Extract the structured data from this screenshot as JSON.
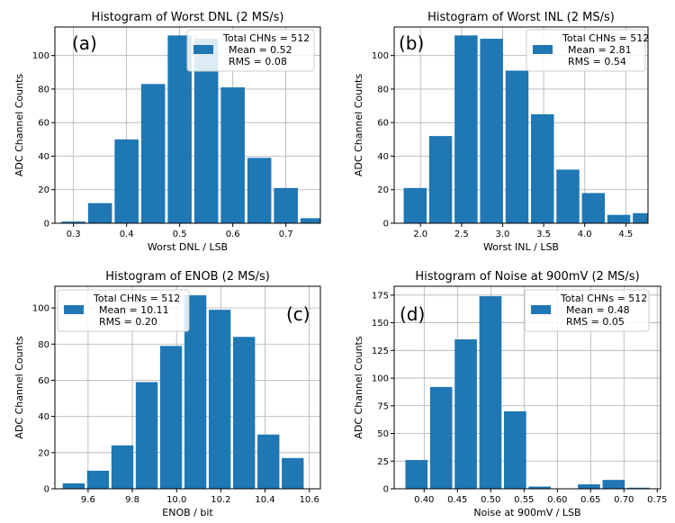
{
  "chart_data": [
    {
      "type": "bar",
      "title": "Histogram of Worst DNL (2 MS/s)",
      "xlabel": "Worst DNL / LSB",
      "ylabel": "ADC Channel Counts",
      "panel_label": "(a)",
      "xlim": [
        0.265,
        0.765
      ],
      "ylim": [
        0,
        117
      ],
      "xticks": [
        "0.3",
        "0.4",
        "0.5",
        "0.6",
        "0.7"
      ],
      "yticks": [
        "0",
        "20",
        "40",
        "60",
        "80",
        "100"
      ],
      "bin_edges": [
        0.275,
        0.325,
        0.375,
        0.425,
        0.475,
        0.525,
        0.575,
        0.625,
        0.675,
        0.725,
        0.775
      ],
      "values": [
        1,
        12,
        50,
        83,
        112,
        110,
        81,
        39,
        21,
        3
      ],
      "grid": true,
      "color": "#1f77b4",
      "legend": {
        "placement": "upper right",
        "lines": [
          "Total CHNs = 512",
          "Mean = 0.52",
          "RMS = 0.08"
        ]
      }
    },
    {
      "type": "bar",
      "title": "Histogram of Worst INL (2 MS/s)",
      "xlabel": "Worst INL / LSB",
      "ylabel": "ADC Channel Counts",
      "panel_label": "(b)",
      "xlim": [
        1.68,
        4.77
      ],
      "ylim": [
        0,
        117
      ],
      "xticks": [
        "2.0",
        "2.5",
        "3.0",
        "3.5",
        "4.0",
        "4.5"
      ],
      "yticks": [
        "0",
        "20",
        "40",
        "60",
        "80",
        "100"
      ],
      "bin_edges": [
        1.78,
        2.09,
        2.4,
        2.71,
        3.02,
        3.33,
        3.64,
        3.95,
        4.26,
        4.57,
        4.88
      ],
      "values": [
        21,
        52,
        112,
        110,
        91,
        65,
        32,
        18,
        5,
        6
      ],
      "grid": true,
      "color": "#1f77b4",
      "legend": {
        "placement": "upper right",
        "lines": [
          "Total CHNs = 512",
          "Mean = 2.81",
          "RMS = 0.54"
        ]
      }
    },
    {
      "type": "bar",
      "title": "Histogram of ENOB (2 MS/s)",
      "xlabel": "ENOB / bit",
      "ylabel": "ADC Channel Counts",
      "panel_label": "(c)",
      "xlim": [
        9.45,
        10.65
      ],
      "ylim": [
        0,
        112
      ],
      "xticks": [
        "9.6",
        "9.8",
        "10.0",
        "10.2",
        "10.4",
        "10.6"
      ],
      "yticks": [
        "0",
        "20",
        "40",
        "60",
        "80",
        "100"
      ],
      "bin_edges": [
        9.48,
        9.59,
        9.7,
        9.81,
        9.92,
        10.03,
        10.14,
        10.25,
        10.36,
        10.47,
        10.58
      ],
      "values": [
        3,
        10,
        24,
        59,
        79,
        107,
        99,
        84,
        30,
        17
      ],
      "grid": true,
      "color": "#1f77b4",
      "legend": {
        "placement": "upper left",
        "lines": [
          "Total CHNs = 512",
          "Mean = 10.11",
          "RMS = 0.20"
        ]
      }
    },
    {
      "type": "bar",
      "title": "Histogram of Noise at 900mV (2 MS/s)",
      "xlabel": "Noise at 900mV / LSB",
      "ylabel": "ADC Channel Counts",
      "panel_label": "(d)",
      "xlim": [
        0.355,
        0.755
      ],
      "ylim": [
        0,
        183
      ],
      "xticks": [
        "0.40",
        "0.45",
        "0.50",
        "0.55",
        "0.60",
        "0.65",
        "0.70",
        "0.75"
      ],
      "yticks": [
        "0",
        "25",
        "50",
        "75",
        "100",
        "125",
        "150",
        "175"
      ],
      "bin_edges": [
        0.37,
        0.407,
        0.444,
        0.481,
        0.518,
        0.555,
        0.592,
        0.629,
        0.666,
        0.703,
        0.74
      ],
      "values": [
        26,
        92,
        135,
        174,
        70,
        2,
        0,
        4,
        8,
        1
      ],
      "grid": true,
      "color": "#1f77b4",
      "legend": {
        "placement": "upper right",
        "lines": [
          "Total CHNs = 512",
          "Mean = 0.48",
          "RMS = 0.05"
        ]
      }
    }
  ]
}
